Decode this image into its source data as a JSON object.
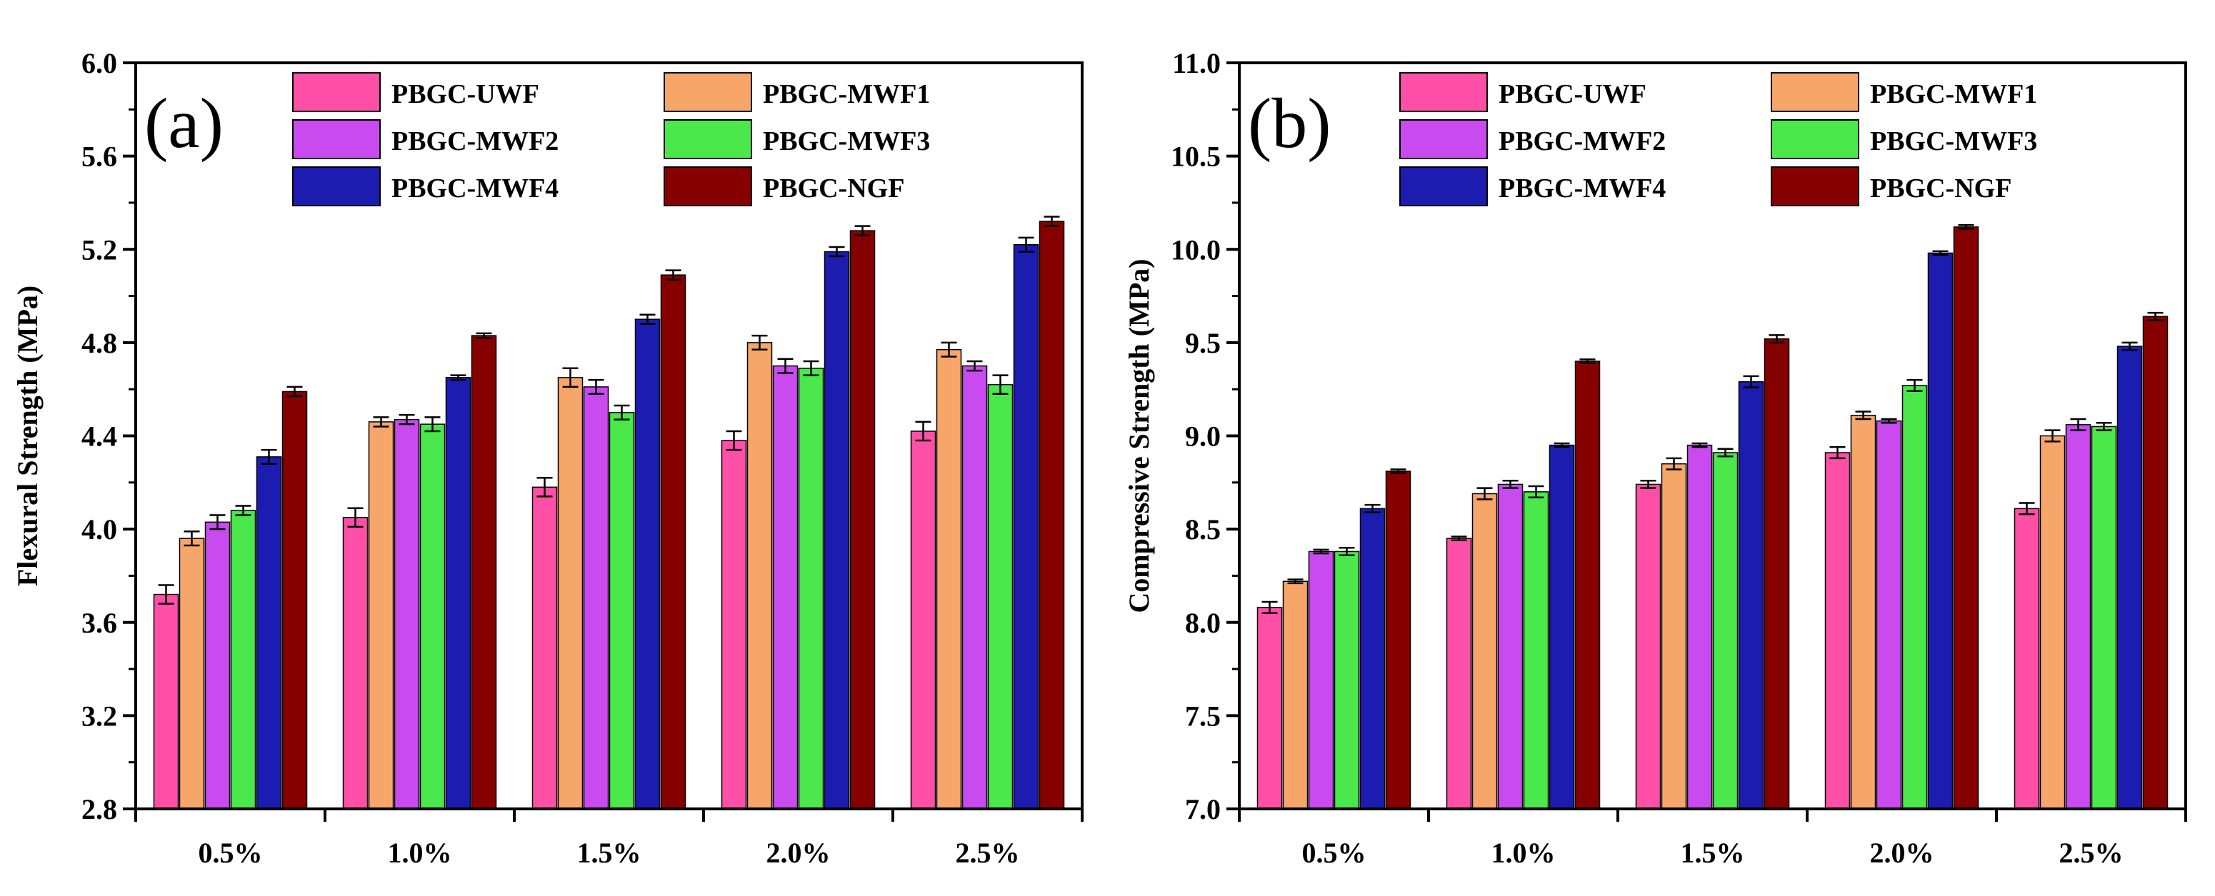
{
  "chart_data": [
    {
      "type": "bar",
      "panel_label": "(a)",
      "categories": [
        "0.5%",
        "1.0%",
        "1.5%",
        "2.0%",
        "2.5%"
      ],
      "xlabel": "",
      "ylabel": "Flexural Strength (MPa)",
      "ylim": [
        2.8,
        6.0
      ],
      "yticks": [
        2.8,
        3.2,
        3.6,
        4.0,
        4.4,
        4.8,
        5.2,
        5.6,
        6.0
      ],
      "ytick_labels": [
        "2.8",
        "3.2",
        "3.6",
        "4.0",
        "4.4",
        "4.8",
        "5.2",
        "5.6",
        "6.0"
      ],
      "legend_position": "top-right",
      "grid": false,
      "series": [
        {
          "name": "PBGC-UWF",
          "color": "#ff4fa7",
          "values": [
            3.72,
            4.05,
            4.18,
            4.38,
            4.42
          ],
          "errors": [
            0.04,
            0.04,
            0.04,
            0.04,
            0.04
          ]
        },
        {
          "name": "PBGC-MWF1",
          "color": "#f7a66a",
          "values": [
            3.96,
            4.46,
            4.65,
            4.8,
            4.77
          ],
          "errors": [
            0.03,
            0.02,
            0.04,
            0.03,
            0.03
          ]
        },
        {
          "name": "PBGC-MWF2",
          "color": "#c94bef",
          "values": [
            4.03,
            4.47,
            4.61,
            4.7,
            4.7
          ],
          "errors": [
            0.03,
            0.02,
            0.03,
            0.03,
            0.02
          ]
        },
        {
          "name": "PBGC-MWF3",
          "color": "#4ae84a",
          "values": [
            4.08,
            4.45,
            4.5,
            4.69,
            4.62
          ],
          "errors": [
            0.02,
            0.03,
            0.03,
            0.03,
            0.04
          ]
        },
        {
          "name": "PBGC-MWF4",
          "color": "#1c1cb0",
          "values": [
            4.31,
            4.65,
            4.9,
            5.19,
            5.22
          ],
          "errors": [
            0.03,
            0.01,
            0.02,
            0.02,
            0.03
          ]
        },
        {
          "name": "PBGC-NGF",
          "color": "#870000",
          "values": [
            4.59,
            4.83,
            5.09,
            5.28,
            5.32
          ],
          "errors": [
            0.02,
            0.01,
            0.02,
            0.02,
            0.02
          ]
        }
      ]
    },
    {
      "type": "bar",
      "panel_label": "(b)",
      "categories": [
        "0.5%",
        "1.0%",
        "1.5%",
        "2.0%",
        "2.5%"
      ],
      "xlabel": "",
      "ylabel": "Compressive Strength (MPa)",
      "ylim": [
        7.0,
        11.0
      ],
      "yticks": [
        7.0,
        7.5,
        8.0,
        8.5,
        9.0,
        9.5,
        10.0,
        10.5,
        11.0
      ],
      "ytick_labels": [
        "7.0",
        "7.5",
        "8.0",
        "8.5",
        "9.0",
        "9.5",
        "10.0",
        "10.5",
        "11.0"
      ],
      "legend_position": "top-right",
      "grid": false,
      "series": [
        {
          "name": "PBGC-UWF",
          "color": "#ff4fa7",
          "values": [
            8.08,
            8.45,
            8.74,
            8.91,
            8.61
          ],
          "errors": [
            0.03,
            0.01,
            0.02,
            0.03,
            0.03
          ]
        },
        {
          "name": "PBGC-MWF1",
          "color": "#f7a66a",
          "values": [
            8.22,
            8.69,
            8.85,
            9.11,
            9.0
          ],
          "errors": [
            0.01,
            0.03,
            0.03,
            0.02,
            0.03
          ]
        },
        {
          "name": "PBGC-MWF2",
          "color": "#c94bef",
          "values": [
            8.38,
            8.74,
            8.95,
            9.08,
            9.06
          ],
          "errors": [
            0.01,
            0.02,
            0.01,
            0.01,
            0.03
          ]
        },
        {
          "name": "PBGC-MWF3",
          "color": "#4ae84a",
          "values": [
            8.38,
            8.7,
            8.91,
            9.27,
            9.05
          ],
          "errors": [
            0.02,
            0.03,
            0.02,
            0.03,
            0.02
          ]
        },
        {
          "name": "PBGC-MWF4",
          "color": "#1c1cb0",
          "values": [
            8.61,
            8.95,
            9.29,
            9.98,
            9.48
          ],
          "errors": [
            0.02,
            0.01,
            0.03,
            0.01,
            0.02
          ]
        },
        {
          "name": "PBGC-NGF",
          "color": "#870000",
          "values": [
            8.81,
            9.4,
            9.52,
            10.12,
            9.64
          ],
          "errors": [
            0.01,
            0.01,
            0.02,
            0.01,
            0.02
          ]
        }
      ]
    }
  ]
}
